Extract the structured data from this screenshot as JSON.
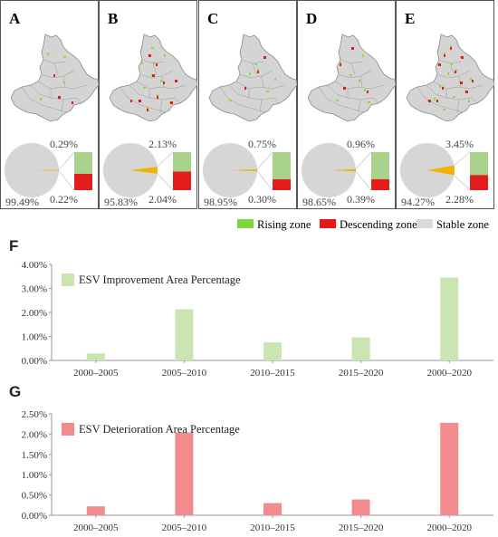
{
  "maps": {
    "panels": [
      {
        "letter": "A",
        "rising": "0.29%",
        "descending": "0.22%",
        "stable": "99.49%",
        "rising_value": 0.29,
        "descending_value": 0.22,
        "stable_value": 99.49
      },
      {
        "letter": "B",
        "rising": "2.13%",
        "descending": "2.04%",
        "stable": "95.83%",
        "rising_value": 2.13,
        "descending_value": 2.04,
        "stable_value": 95.83
      },
      {
        "letter": "C",
        "rising": "0.75%",
        "descending": "0.30%",
        "stable": "98.95%",
        "rising_value": 0.75,
        "descending_value": 0.3,
        "stable_value": 98.95
      },
      {
        "letter": "D",
        "rising": "0.96%",
        "descending": "0.39%",
        "stable": "98.65%",
        "rising_value": 0.96,
        "descending_value": 0.39,
        "stable_value": 98.65
      },
      {
        "letter": "E",
        "rising": "3.45%",
        "descending": "2.28%",
        "stable": "94.27%",
        "rising_value": 3.45,
        "descending_value": 2.28,
        "stable_value": 94.27
      }
    ],
    "legend": [
      {
        "label": "Rising zone",
        "color": "#7fd63a"
      },
      {
        "label": "Descending zone",
        "color": "#e81818"
      },
      {
        "label": "Stable zone",
        "color": "#d9d9d9"
      }
    ],
    "colors": {
      "rising_box": "#a9d38c",
      "descending_box": "#e51c1c",
      "pie_stable": "#d6d6d6",
      "pie_slice": "#f2b200"
    }
  },
  "chart_data": [
    {
      "panel": "F",
      "type": "bar",
      "categories": [
        "2000–2005",
        "2005–2010",
        "2010–2015",
        "2015–2020",
        "2000–2020"
      ],
      "series": [
        {
          "name": "ESV Improvement Area Percentage",
          "values": [
            0.29,
            2.13,
            0.75,
            0.96,
            3.45
          ]
        }
      ],
      "ylim": [
        0,
        4
      ],
      "yticks": [
        "0.00%",
        "1.00%",
        "2.00%",
        "3.00%",
        "4.00%"
      ],
      "color": "#c9e5b1",
      "grid": false,
      "legend": "top-left"
    },
    {
      "panel": "G",
      "type": "bar",
      "categories": [
        "2000–2005",
        "2005–2010",
        "2010–2015",
        "2015–2020",
        "2000–2020"
      ],
      "series": [
        {
          "name": "ESV Deterioration Area Percentage",
          "values": [
            0.22,
            2.04,
            0.3,
            0.39,
            2.28
          ]
        }
      ],
      "ylim": [
        0,
        2.5
      ],
      "yticks": [
        "0.00%",
        "0.50%",
        "1.00%",
        "1.50%",
        "2.00%",
        "2.50%"
      ],
      "color": "#f28b8d",
      "grid": false,
      "legend": "top-left"
    }
  ]
}
